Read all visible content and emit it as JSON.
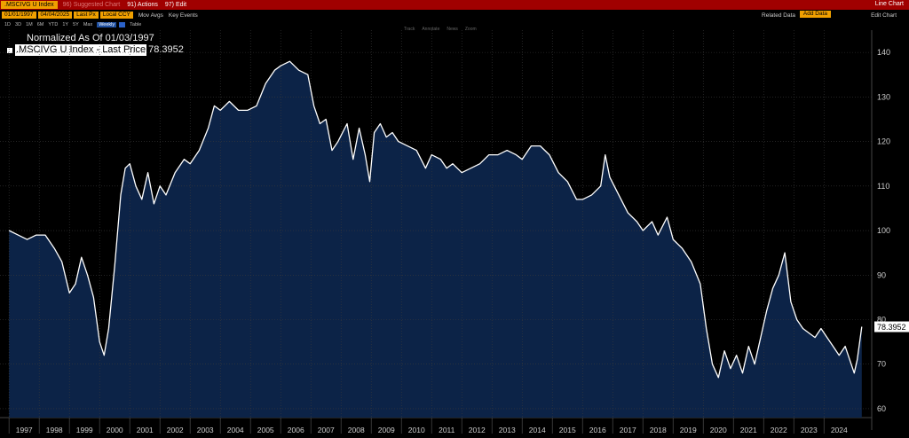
{
  "topbar": {
    "ticker": ".MSCIVG U Index",
    "faint_text": "96) Suggested Chart",
    "actions": "91) Actions",
    "edit": "97) Edit",
    "right_title": "Line Chart"
  },
  "toolbar2": {
    "start_date": "01/01/1997",
    "end_date": "04/04/2025",
    "field": "Last Px",
    "currency": "Local CCY",
    "mov_avgs": "Mov Avgs",
    "key_events": "Key Events",
    "related_data": "Related Data",
    "add_data": "Add Data",
    "edit_chart": "Edit Chart"
  },
  "toolbar3": {
    "periods": [
      "1D",
      "3D",
      "1M",
      "6M",
      "YTD",
      "1Y",
      "5Y",
      "Max"
    ],
    "frequency": "Weekly",
    "table": "Table"
  },
  "mini_tools": [
    "Track",
    "Annotate",
    "News",
    "Zoom"
  ],
  "legend": {
    "normalized": "Normalized As Of 01/03/1997",
    "series_label": ".MSCIVG U Index - Last Price",
    "series_value": "78.3952"
  },
  "colors": {
    "line": "#ffffff",
    "fill": "#0c2347",
    "background": "#000000",
    "accent": "#f0a000",
    "topbar": "#a00000"
  },
  "chart_data": {
    "type": "area",
    "title": "",
    "xlabel": "",
    "ylabel": "",
    "ylim": [
      58,
      145
    ],
    "xlim": [
      1996.7,
      2025.58
    ],
    "yticks": [
      60,
      70,
      80,
      90,
      100,
      110,
      120,
      130,
      140
    ],
    "xticks": [
      "1997",
      "1998",
      "1999",
      "2000",
      "2001",
      "2002",
      "2003",
      "2004",
      "2005",
      "2006",
      "2007",
      "2008",
      "2009",
      "2010",
      "2011",
      "2012",
      "2013",
      "2014",
      "2015",
      "2016",
      "2017",
      "2018",
      "2019",
      "2020",
      "2021",
      "2022",
      "2023",
      "2024"
    ],
    "last_value": "78.3952",
    "grid": true,
    "series": [
      {
        "name": ".MSCIVG U Index - Last Price",
        "x": [
          1997.0,
          1997.3,
          1997.6,
          1997.9,
          1998.2,
          1998.5,
          1998.75,
          1999.0,
          1999.2,
          1999.4,
          1999.6,
          1999.8,
          2000.0,
          2000.15,
          2000.3,
          2000.5,
          2000.7,
          2000.85,
          2001.0,
          2001.2,
          2001.4,
          2001.6,
          2001.8,
          2002.0,
          2002.2,
          2002.5,
          2002.8,
          2003.0,
          2003.3,
          2003.6,
          2003.8,
          2004.0,
          2004.3,
          2004.6,
          2004.9,
          2005.2,
          2005.5,
          2005.8,
          2006.0,
          2006.3,
          2006.6,
          2006.9,
          2007.1,
          2007.3,
          2007.5,
          2007.7,
          2007.9,
          2008.2,
          2008.4,
          2008.6,
          2008.8,
          2008.95,
          2009.1,
          2009.3,
          2009.5,
          2009.7,
          2009.9,
          2010.2,
          2010.5,
          2010.8,
          2011.0,
          2011.3,
          2011.5,
          2011.7,
          2012.0,
          2012.3,
          2012.6,
          2012.9,
          2013.2,
          2013.5,
          2013.8,
          2014.0,
          2014.3,
          2014.6,
          2014.9,
          2015.2,
          2015.5,
          2015.8,
          2016.0,
          2016.3,
          2016.6,
          2016.75,
          2016.9,
          2017.2,
          2017.5,
          2017.8,
          2018.0,
          2018.3,
          2018.5,
          2018.8,
          2019.0,
          2019.3,
          2019.6,
          2019.9,
          2020.1,
          2020.3,
          2020.5,
          2020.7,
          2020.9,
          2021.1,
          2021.3,
          2021.5,
          2021.7,
          2021.9,
          2022.1,
          2022.3,
          2022.5,
          2022.7,
          2022.9,
          2023.1,
          2023.3,
          2023.5,
          2023.7,
          2023.9,
          2024.1,
          2024.3,
          2024.5,
          2024.7,
          2024.85,
          2025.0,
          2025.1,
          2025.25
        ],
        "values": [
          100,
          99,
          98,
          99,
          99,
          96,
          93,
          86,
          88,
          94,
          90,
          85,
          75,
          72,
          78,
          92,
          108,
          114,
          115,
          110,
          107,
          113,
          106,
          110,
          108,
          113,
          116,
          115,
          118,
          123,
          128,
          127,
          129,
          127,
          127,
          128,
          133,
          136,
          137,
          138,
          136,
          135,
          128,
          124,
          125,
          118,
          120,
          124,
          116,
          123,
          117,
          111,
          122,
          124,
          121,
          122,
          120,
          119,
          118,
          114,
          117,
          116,
          114,
          115,
          113,
          114,
          115,
          117,
          117,
          118,
          117,
          116,
          119,
          119,
          117,
          113,
          111,
          107,
          107,
          108,
          110,
          117,
          112,
          108,
          104,
          102,
          100,
          102,
          99,
          103,
          98,
          96,
          93,
          88,
          78,
          70,
          67,
          73,
          69,
          72,
          68,
          74,
          70,
          76,
          82,
          87,
          90,
          95,
          84,
          80,
          78,
          77,
          76,
          78,
          76,
          74,
          72,
          74,
          71,
          68,
          71,
          78.4
        ]
      }
    ]
  }
}
